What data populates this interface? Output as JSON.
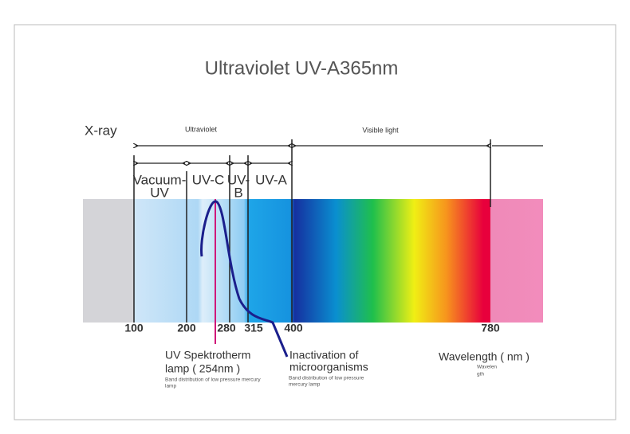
{
  "title": "Ultraviolet UV-A365nm",
  "regions": {
    "xray": "X-ray",
    "ultraviolet": "Ultraviolet",
    "visible": "Visible light"
  },
  "bands": {
    "vacuum_uv": [
      "Vacuum-",
      "UV"
    ],
    "uv_c": "UV-C",
    "uv_b": [
      "UV-",
      "B"
    ],
    "uv_a": "UV-A"
  },
  "axis_labels": [
    "100",
    "200",
    "280",
    "315",
    "400",
    "780"
  ],
  "annotations": {
    "lamp": {
      "title": [
        "UV Spektrotherm",
        "lamp ( 254nm )"
      ],
      "note": [
        "Band distribution of low pressure mercury",
        "lamp"
      ]
    },
    "inactivation": {
      "title": [
        "Inactivation of",
        "microorganisms"
      ],
      "note": [
        "Band distribution of low pressure",
        "mercury lamp"
      ]
    },
    "wavelength": {
      "title": "Wavelength ( nm )",
      "note": [
        "Wavelen",
        "gth"
      ]
    }
  }
}
